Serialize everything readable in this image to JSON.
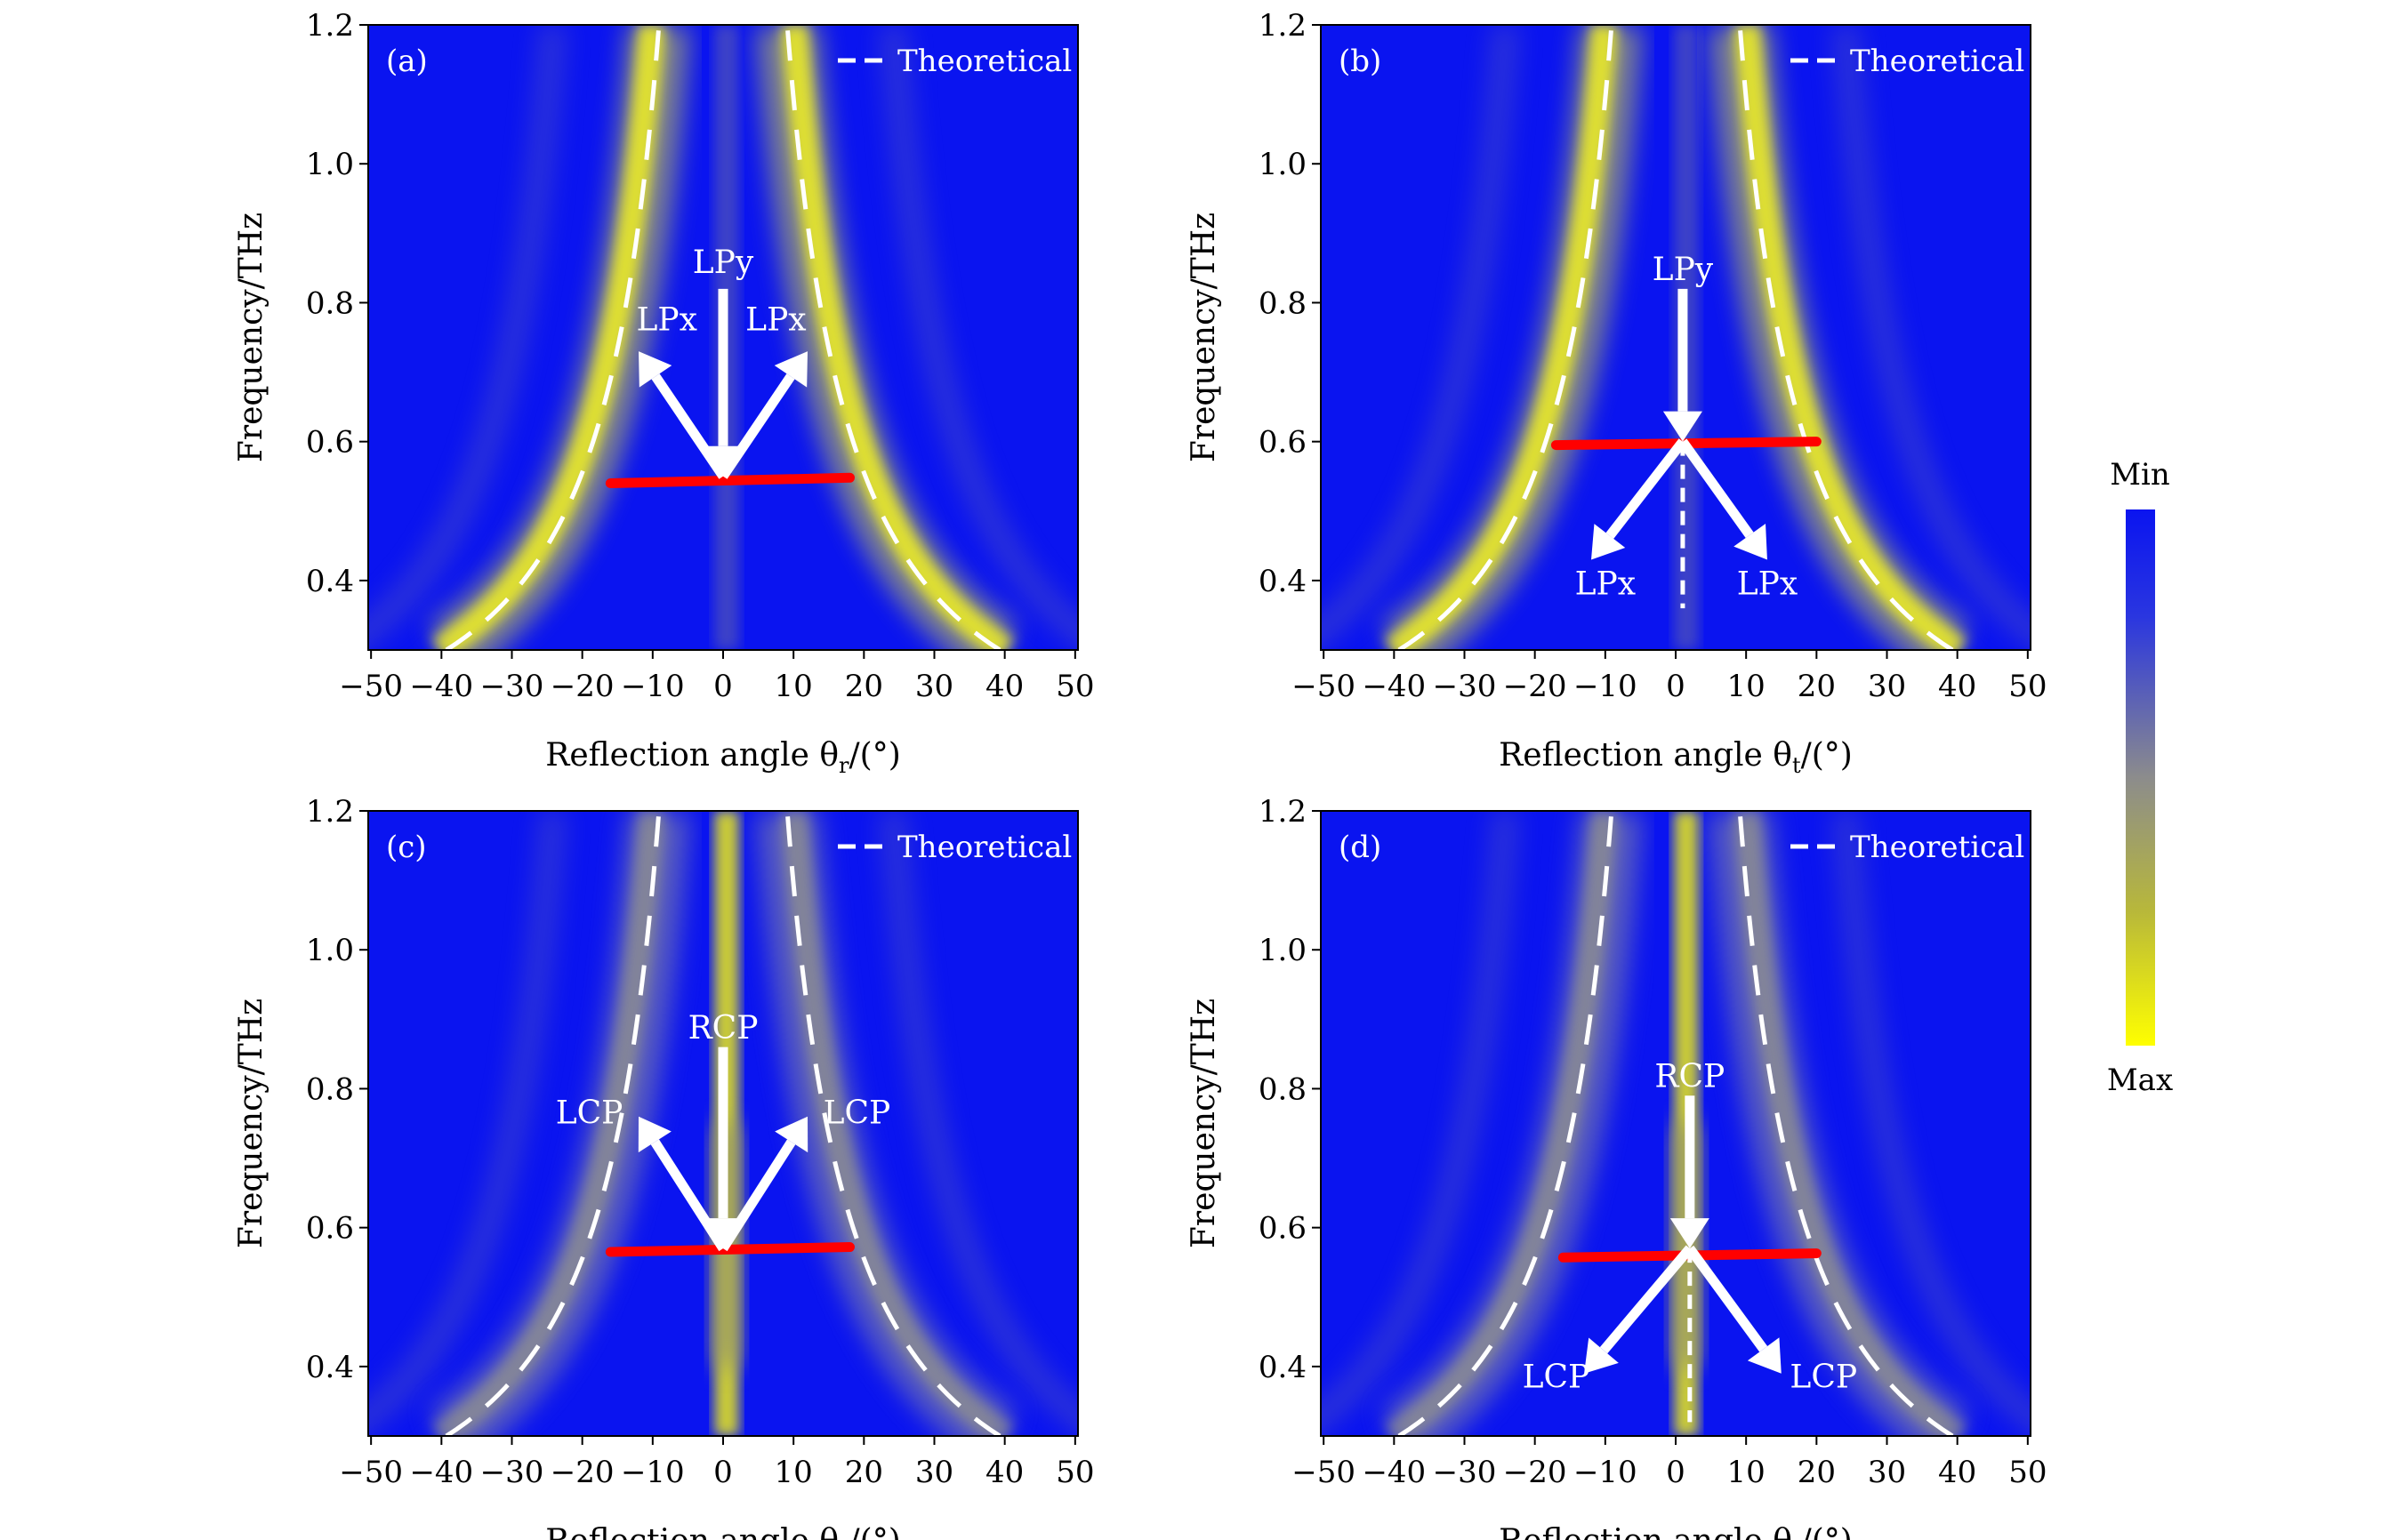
{
  "chart_data": {
    "type": "heatmap",
    "colorbar": {
      "top_label": "Min",
      "bottom_label": "Max",
      "colors": [
        "#0a14f0",
        "#8c8c8c",
        "#ffff00"
      ]
    },
    "panels": [
      {
        "id": "a",
        "label": "(a)",
        "legend": "Theoretical",
        "legend_position": "top-right",
        "xlabel": "Reflection angle θ",
        "xlabel_sub": "r",
        "xlabel_unit": "/(°)",
        "ylabel": "Frequency/THz",
        "xlim": [
          -50,
          50
        ],
        "ylim": [
          0.3,
          1.2
        ],
        "xticks": [
          "−50",
          "−40",
          "−30",
          "−20",
          "−10",
          "0",
          "10",
          "20",
          "30",
          "40",
          "50"
        ],
        "yticks": [
          "0.4",
          "0.6",
          "0.8",
          "1.0",
          "1.2"
        ],
        "incident_label": "LPy",
        "output_labels": [
          "LPx",
          "LPx"
        ],
        "mode": "reflect",
        "red_line": {
          "theta": [
            -16,
            18
          ],
          "freq": [
            0.54,
            0.548
          ]
        }
      },
      {
        "id": "b",
        "label": "(b)",
        "legend": "Theoretical",
        "legend_position": "top-right",
        "xlabel": "Reflection angle θ",
        "xlabel_sub": "t",
        "xlabel_unit": "/(°)",
        "ylabel": "Frequency/THz",
        "xlim": [
          -50,
          50
        ],
        "ylim": [
          0.3,
          1.2
        ],
        "xticks": [
          "−50",
          "−40",
          "−30",
          "−20",
          "−10",
          "0",
          "10",
          "20",
          "30",
          "40",
          "50"
        ],
        "yticks": [
          "0.4",
          "0.6",
          "0.8",
          "1.0",
          "1.2"
        ],
        "incident_label": "LPy",
        "output_labels": [
          "LPx",
          "LPx"
        ],
        "mode": "transmit",
        "red_line": {
          "theta": [
            -17,
            20
          ],
          "freq": [
            0.595,
            0.6
          ]
        }
      },
      {
        "id": "c",
        "label": "(c)",
        "legend": "Theoretical",
        "legend_position": "top-right",
        "xlabel": "Reflection angle θ",
        "xlabel_sub": "r",
        "xlabel_unit": "/(°)",
        "ylabel": "Frequency/THz",
        "xlim": [
          -50,
          50
        ],
        "ylim": [
          0.3,
          1.2
        ],
        "xticks": [
          "−50",
          "−40",
          "−30",
          "−20",
          "−10",
          "0",
          "10",
          "20",
          "30",
          "40",
          "50"
        ],
        "yticks": [
          "0.4",
          "0.6",
          "0.8",
          "1.0",
          "1.2"
        ],
        "incident_label": "RCP",
        "output_labels": [
          "LCP",
          "LCP"
        ],
        "mode": "reflect",
        "red_line": {
          "theta": [
            -16,
            18
          ],
          "freq": [
            0.565,
            0.572
          ]
        }
      },
      {
        "id": "d",
        "label": "(d)",
        "legend": "Theoretical",
        "legend_position": "top-right",
        "xlabel": "Reflection angle θ",
        "xlabel_sub": "t",
        "xlabel_unit": "/(°)",
        "ylabel": "Frequency/THz",
        "xlim": [
          -50,
          50
        ],
        "ylim": [
          0.3,
          1.2
        ],
        "xticks": [
          "−50",
          "−40",
          "−30",
          "−20",
          "−10",
          "0",
          "10",
          "20",
          "30",
          "40",
          "50"
        ],
        "yticks": [
          "0.4",
          "0.6",
          "0.8",
          "1.0",
          "1.2"
        ],
        "incident_label": "RCP",
        "output_labels": [
          "LCP",
          "LCP"
        ],
        "mode": "transmit",
        "red_line": {
          "theta": [
            -16,
            20
          ],
          "freq": [
            0.557,
            0.563
          ]
        }
      }
    ]
  }
}
